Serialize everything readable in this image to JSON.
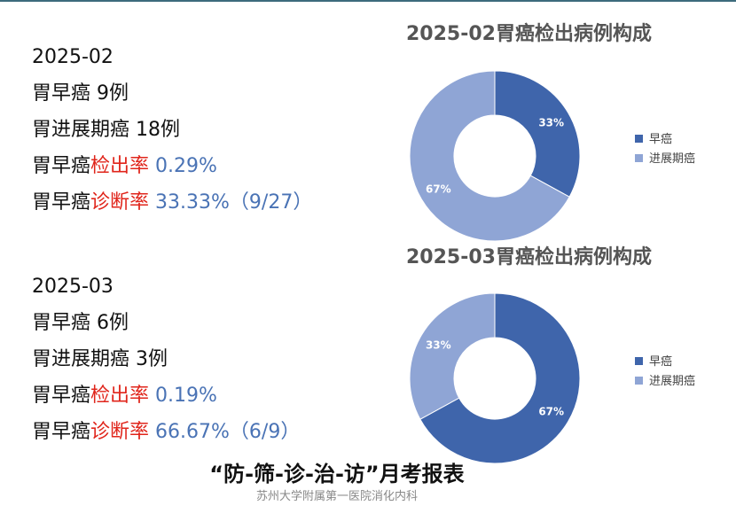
{
  "blocks": [
    {
      "period": "2025-02",
      "early": "胃早癌 9例",
      "advanced": "胃进展期癌 18例",
      "rate_label_prefix": "胃早癌",
      "detect_label": "检出率",
      "detect_value": "0.29%",
      "diag_label": "诊断率",
      "diag_value": "33.33%（9/27）"
    },
    {
      "period": "2025-03",
      "early": "胃早癌 6例",
      "advanced": "胃进展期癌 3例",
      "rate_label_prefix": "胃早癌",
      "detect_label": "检出率",
      "detect_value": "0.19%",
      "diag_label": "诊断率",
      "diag_value": "66.67%（6/9）"
    }
  ],
  "chart_data": [
    {
      "type": "pie",
      "title": "2025-02胃癌检出病例构成",
      "labels": [
        "早癌",
        "进展期癌"
      ],
      "values": [
        33,
        67
      ],
      "data_labels": [
        "33%",
        "67%"
      ],
      "colors": [
        "#3f65ab",
        "#8fa5d5"
      ],
      "legend": "right"
    },
    {
      "type": "pie",
      "title": "2025-03胃癌检出病例构成",
      "labels": [
        "早癌",
        "进展期癌"
      ],
      "values": [
        67,
        33
      ],
      "data_labels": [
        "67%",
        "33%"
      ],
      "colors": [
        "#3f65ab",
        "#8fa5d5"
      ],
      "legend": "right"
    }
  ],
  "footer": {
    "title": "“防-筛-诊-治-访”月考报表",
    "subtitle": "苏州大学附属第一医院消化内科"
  }
}
